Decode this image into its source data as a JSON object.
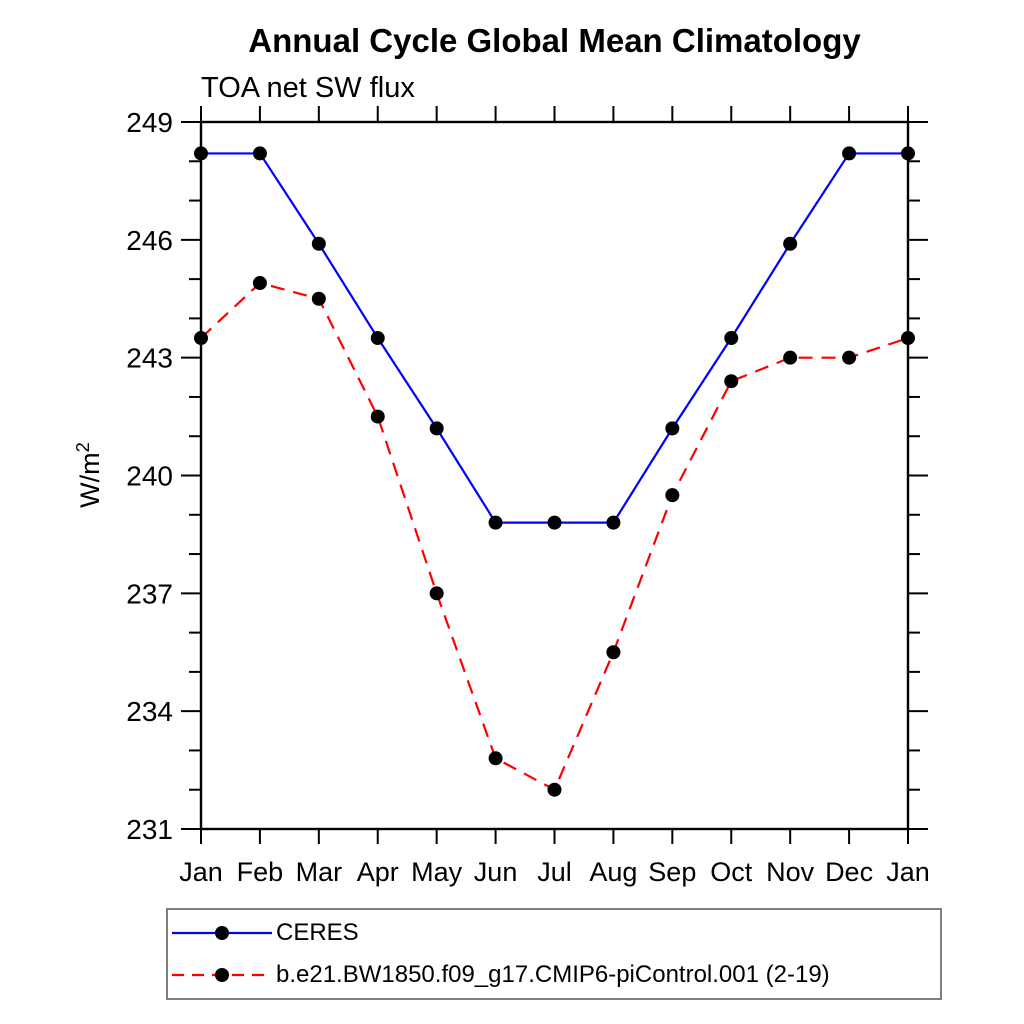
{
  "chart_data": {
    "type": "line",
    "title": "Annual Cycle Global Mean Climatology",
    "subtitle": "TOA net SW flux",
    "ylabel_base": "W/m",
    "ylabel_exponent": "2",
    "x_categories": [
      "Jan",
      "Feb",
      "Mar",
      "Apr",
      "May",
      "Jun",
      "Jul",
      "Aug",
      "Sep",
      "Oct",
      "Nov",
      "Dec",
      "Jan"
    ],
    "ylim": [
      231,
      249
    ],
    "y_major_ticks": [
      231,
      234,
      237,
      240,
      243,
      246,
      249
    ],
    "y_minor_step": 1,
    "grid": false,
    "legend_position": "bottom-left",
    "text_color": "#000000",
    "axis_color": "#000000",
    "marker_color": "#000000",
    "series": [
      {
        "name": "CERES",
        "color": "#0000ff",
        "line_style": "solid",
        "marker": "circle",
        "values": [
          248.2,
          248.2,
          245.9,
          243.5,
          241.2,
          238.8,
          238.8,
          238.8,
          241.2,
          243.5,
          245.9,
          248.2,
          248.2
        ]
      },
      {
        "name": "b.e21.BW1850.f09_g17.CMIP6-piControl.001 (2-19)",
        "color": "#ff0000",
        "line_style": "dashed",
        "marker": "circle",
        "values": [
          243.5,
          244.9,
          244.5,
          241.5,
          237.0,
          232.8,
          232.0,
          235.5,
          239.5,
          242.4,
          243.0,
          243.0,
          243.5
        ]
      }
    ]
  }
}
